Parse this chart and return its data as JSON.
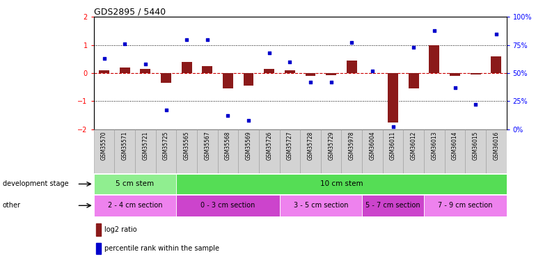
{
  "title": "GDS2895 / 5440",
  "samples": [
    "GSM35570",
    "GSM35571",
    "GSM35721",
    "GSM35725",
    "GSM35565",
    "GSM35567",
    "GSM35568",
    "GSM35569",
    "GSM35726",
    "GSM35727",
    "GSM35728",
    "GSM35729",
    "GSM35978",
    "GSM36004",
    "GSM36011",
    "GSM36012",
    "GSM36013",
    "GSM36014",
    "GSM36015",
    "GSM36016"
  ],
  "log2_ratio": [
    0.1,
    0.2,
    0.15,
    -0.35,
    0.4,
    0.25,
    -0.55,
    -0.45,
    0.15,
    0.1,
    -0.1,
    -0.08,
    0.45,
    0.0,
    -1.75,
    -0.55,
    1.0,
    -0.1,
    -0.05,
    0.6
  ],
  "percentile": [
    63,
    76,
    58,
    17,
    80,
    80,
    12,
    8,
    68,
    60,
    42,
    42,
    77,
    52,
    2,
    73,
    88,
    37,
    22,
    85
  ],
  "bar_color": "#8B1A1A",
  "dot_color": "#0000CC",
  "ylim_left": [
    -2,
    2
  ],
  "ylim_right": [
    0,
    100
  ],
  "yticks_left": [
    -2,
    -1,
    0,
    1,
    2
  ],
  "yticks_right": [
    0,
    25,
    50,
    75,
    100
  ],
  "hline_y": [
    1,
    -1
  ],
  "hline_zero_color": "#CC0000",
  "hline_dotted_color": "#000000",
  "dev_stage_groups": [
    {
      "label": "5 cm stem",
      "start": 0,
      "end": 4,
      "color": "#90EE90"
    },
    {
      "label": "10 cm stem",
      "start": 4,
      "end": 20,
      "color": "#55DD55"
    }
  ],
  "other_groups": [
    {
      "label": "2 - 4 cm section",
      "start": 0,
      "end": 4,
      "color": "#EE82EE"
    },
    {
      "label": "0 - 3 cm section",
      "start": 4,
      "end": 9,
      "color": "#CC44CC"
    },
    {
      "label": "3 - 5 cm section",
      "start": 9,
      "end": 13,
      "color": "#EE82EE"
    },
    {
      "label": "5 - 7 cm section",
      "start": 13,
      "end": 16,
      "color": "#CC44CC"
    },
    {
      "label": "7 - 9 cm section",
      "start": 16,
      "end": 20,
      "color": "#EE82EE"
    }
  ],
  "dev_stage_label": "development stage",
  "other_label": "other",
  "legend_bar_label": "log2 ratio",
  "legend_dot_label": "percentile rank within the sample",
  "bg_color": "#FFFFFF"
}
